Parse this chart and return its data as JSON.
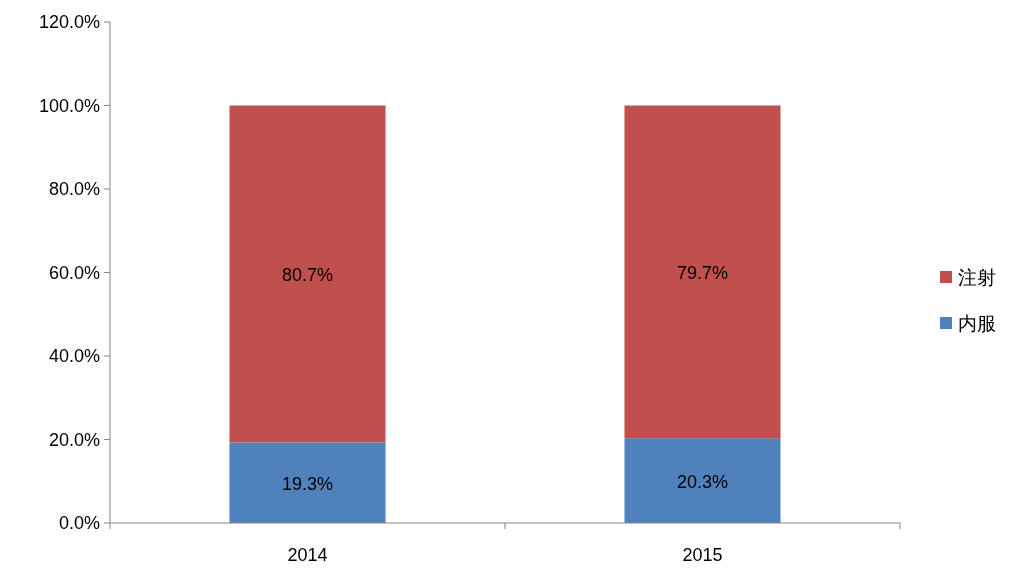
{
  "chart_data": {
    "type": "bar",
    "stacked": true,
    "categories": [
      "2014",
      "2015"
    ],
    "series": [
      {
        "name": "内服",
        "color": "#4f81bd",
        "values": [
          19.3,
          20.3
        ],
        "value_labels": [
          "19.3%",
          "20.3%"
        ]
      },
      {
        "name": "注射",
        "color": "#c0504d",
        "values": [
          80.7,
          79.7
        ],
        "value_labels": [
          "80.7%",
          "79.7%"
        ]
      }
    ],
    "ylim": [
      0,
      120
    ],
    "yticks": [
      {
        "value": 0,
        "label": "0.0%"
      },
      {
        "value": 20,
        "label": "20.0%"
      },
      {
        "value": 40,
        "label": "40.0%"
      },
      {
        "value": 60,
        "label": "60.0%"
      },
      {
        "value": 80,
        "label": "80.0%"
      },
      {
        "value": 100,
        "label": "100.0%"
      },
      {
        "value": 120,
        "label": "120.0%"
      }
    ],
    "legend": "right"
  }
}
